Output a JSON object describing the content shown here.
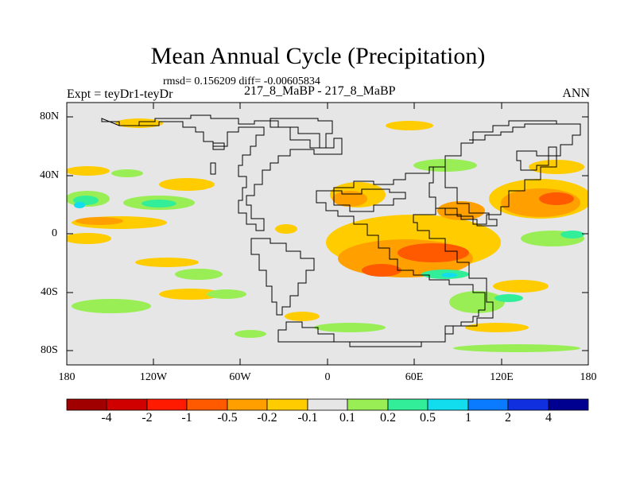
{
  "title": "Mean Annual Cycle (Precipitation)",
  "stats": "rmsd= 0.156209 diff= -0.00605834",
  "experiment": "Expt = teyDr1-teyDr",
  "case": "217_8_MaBP - 217_8_MaBP",
  "season": "ANN",
  "lat_labels": [
    "80N",
    "40N",
    "0",
    "40S",
    "80S"
  ],
  "lon_labels": [
    "180",
    "120W",
    "60W",
    "0",
    "60E",
    "120E",
    "180"
  ],
  "colorbar": {
    "labels": [
      "-4",
      "-2",
      "-1",
      "-0.5",
      "-0.2",
      "-0.1",
      "0.1",
      "0.2",
      "0.5",
      "1",
      "2",
      "4"
    ],
    "colors": [
      "#a00000",
      "#d00000",
      "#ff1a00",
      "#ff5a00",
      "#ffa000",
      "#ffcc00",
      "#e6e6e6",
      "#99ee55",
      "#33ee99",
      "#11ddee",
      "#0a7aff",
      "#1030e0",
      "#000090"
    ]
  },
  "map_colors": {
    "background": "#e6e6e6",
    "strong_red": "#ff5a00",
    "orange": "#ffa000",
    "yellow": "#ffcc00",
    "green": "#99ee55",
    "teal": "#33ee99",
    "cyan": "#11ddee",
    "coast": "#000000"
  }
}
